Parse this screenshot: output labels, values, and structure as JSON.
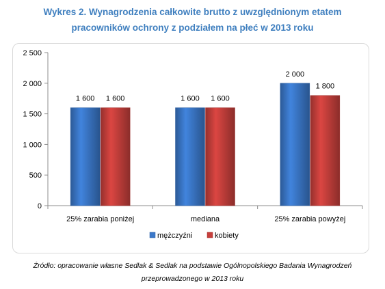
{
  "title_line1": "Wykres 2. Wynagrodzenia całkowite brutto z uwzględnionym etatem",
  "title_line2": "pracowników ochrony z podziałem na płeć w 2013 roku",
  "source_line1": "Źródło: opracowanie własne Sedlak & Sedlak na podstawie Ogólnopolskiego Badania Wynagrodzeń",
  "source_line2": "przeprowadzonego w 2013 roku",
  "chart_data": {
    "type": "bar",
    "categories": [
      "25% zarabia poniżej",
      "mediana",
      "25% zarabia powyżej"
    ],
    "series": [
      {
        "name": "mężczyźni",
        "values": [
          1600,
          1600,
          2000
        ],
        "labels": [
          "1 600",
          "1 600",
          "2 000"
        ],
        "color": "#3b78c9"
      },
      {
        "name": "kobiety",
        "values": [
          1600,
          1600,
          1800
        ],
        "labels": [
          "1 600",
          "1 600",
          "1 800"
        ],
        "color": "#c7403c"
      }
    ],
    "ylim": [
      0,
      2500
    ],
    "yticks": [
      0,
      500,
      1000,
      1500,
      2000,
      2500
    ],
    "ytick_labels": [
      "0",
      "500",
      "1 000",
      "1 500",
      "2 000",
      "2 500"
    ],
    "xlabel": "",
    "ylabel": "",
    "grid": false,
    "legend_position": "bottom"
  }
}
